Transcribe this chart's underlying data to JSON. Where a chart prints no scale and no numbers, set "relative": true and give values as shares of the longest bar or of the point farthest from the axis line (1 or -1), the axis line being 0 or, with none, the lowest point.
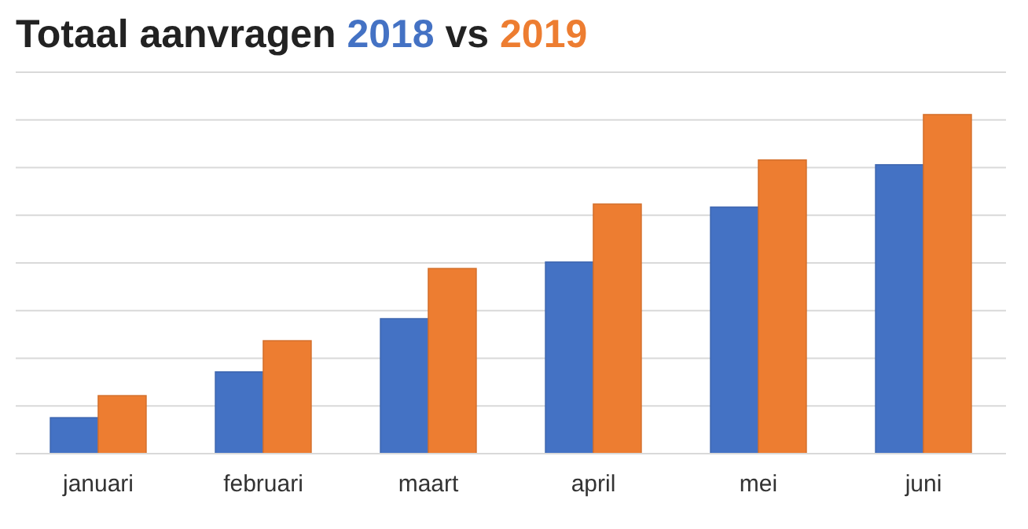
{
  "chart_data": {
    "type": "bar",
    "title": "Totaal aanvragen",
    "annotations": [
      "vs"
    ],
    "relative": true,
    "grid": "y",
    "legend": "top left",
    "categories": [
      "januari",
      "februari",
      "maart",
      "april",
      "mei",
      "juni"
    ],
    "series": [
      {
        "name": "2018",
        "color": "#4472c4",
        "values": [
          0.106,
          0.241,
          0.398,
          0.565,
          0.727,
          0.852
        ]
      },
      {
        "name": "2019",
        "color": "#ed7d31",
        "values": [
          0.171,
          0.333,
          0.546,
          0.736,
          0.866,
          1
        ]
      }
    ]
  }
}
